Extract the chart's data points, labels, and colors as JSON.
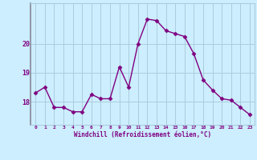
{
  "x": [
    0,
    1,
    2,
    3,
    4,
    5,
    6,
    7,
    8,
    9,
    10,
    11,
    12,
    13,
    14,
    15,
    16,
    17,
    18,
    19,
    20,
    21,
    22,
    23
  ],
  "y": [
    18.3,
    18.5,
    17.8,
    17.8,
    17.65,
    17.65,
    18.25,
    18.1,
    18.1,
    19.2,
    18.5,
    20.0,
    20.85,
    20.8,
    20.45,
    20.35,
    20.25,
    19.65,
    18.75,
    18.4,
    18.1,
    18.05,
    17.8,
    17.55
  ],
  "line_color": "#800080",
  "marker": "D",
  "marker_size": 2.5,
  "bg_color": "#cceeff",
  "grid_color": "#aaccdd",
  "xlabel": "Windchill (Refroidissement éolien,°C)",
  "xlabel_color": "#800080",
  "tick_color": "#800080",
  "ylim": [
    17.2,
    21.4
  ],
  "xlim": [
    -0.5,
    23.5
  ],
  "yticks": [
    18,
    19,
    20
  ],
  "xticks": [
    0,
    1,
    2,
    3,
    4,
    5,
    6,
    7,
    8,
    9,
    10,
    11,
    12,
    13,
    14,
    15,
    16,
    17,
    18,
    19,
    20,
    21,
    22,
    23
  ],
  "left_spine_color": "#888899",
  "figsize": [
    3.2,
    2.0
  ],
  "dpi": 100
}
